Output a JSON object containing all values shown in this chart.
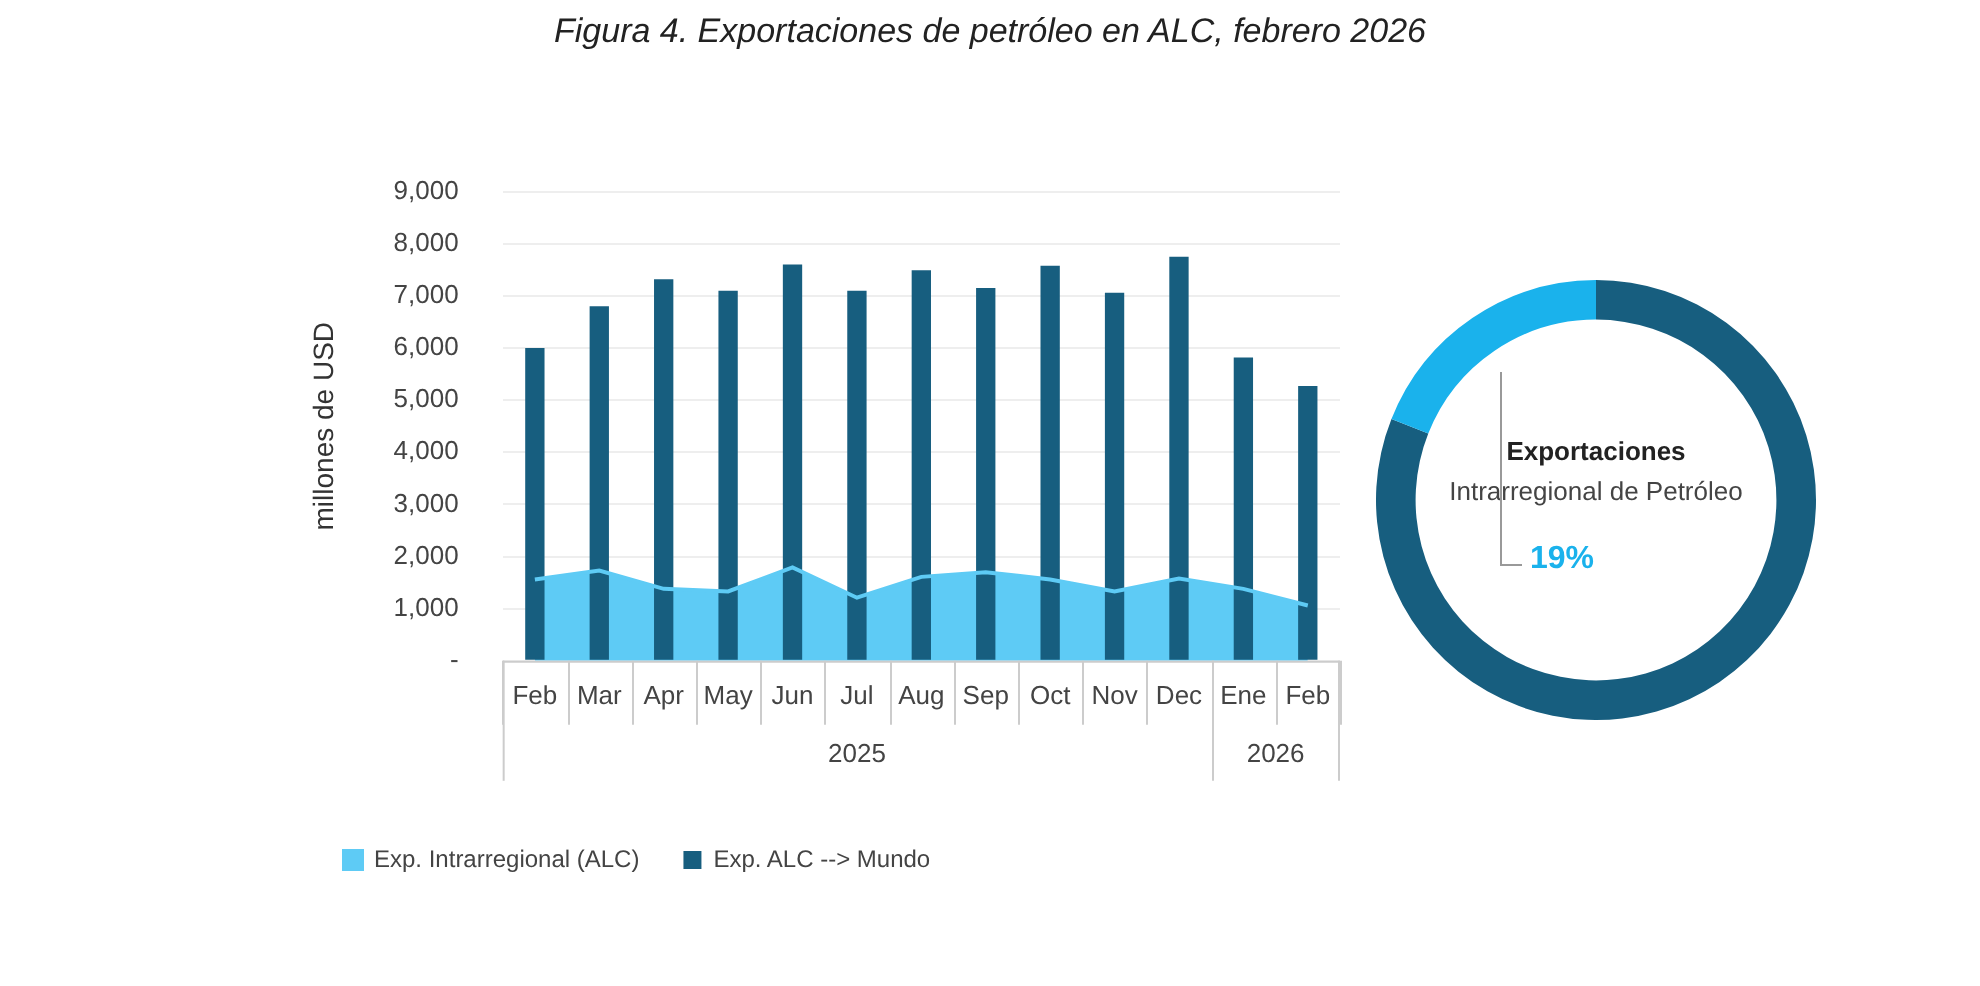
{
  "chart_data": [
    {
      "type": "bar",
      "title": "Figura 4. Exportaciones de petróleo en ALC, febrero 2026",
      "ylabel": "millones de USD",
      "categories": [
        "Feb",
        "Mar",
        "Apr",
        "May",
        "Jun",
        "Jul",
        "Aug",
        "Sep",
        "Oct",
        "Nov",
        "Dec",
        "Ene",
        "Feb"
      ],
      "series": [
        {
          "name": "Exp. Intrarregional (ALC)",
          "type": "area",
          "color": "#5ecbf5",
          "values": [
            1560,
            1730,
            1380,
            1330,
            1790,
            1210,
            1610,
            1700,
            1560,
            1330,
            1580,
            1380,
            1060
          ]
        },
        {
          "name": "Exp. ALC --> Mundo",
          "type": "bar",
          "color": "#175e7f",
          "values": [
            6000,
            6800,
            7320,
            7100,
            7600,
            7100,
            7490,
            7150,
            7580,
            7060,
            7750,
            5820,
            5270
          ]
        }
      ],
      "ylim": [
        0,
        9000
      ],
      "yticks": [
        {
          "value": 0,
          "label": "-"
        },
        {
          "value": 1000,
          "label": "1,000"
        },
        {
          "value": 2000,
          "label": "2,000"
        },
        {
          "value": 3000,
          "label": "3,000"
        },
        {
          "value": 4000,
          "label": "4,000"
        },
        {
          "value": 5000,
          "label": "5,000"
        },
        {
          "value": 6000,
          "label": "6,000"
        },
        {
          "value": 7000,
          "label": "7,000"
        },
        {
          "value": 8000,
          "label": "8,000"
        },
        {
          "value": 9000,
          "label": "9,000"
        }
      ],
      "grid": "y",
      "legend": "bottom",
      "annotations": [
        "2025",
        "2026"
      ]
    },
    {
      "type": "donut",
      "categories": [
        null,
        "Exportaciones Intrarregional de Petróleo"
      ],
      "values": [
        81,
        19
      ],
      "colors": [
        "#175e7f",
        "#1ab2ec"
      ],
      "value_labels": [
        null,
        "19%"
      ]
    }
  ]
}
